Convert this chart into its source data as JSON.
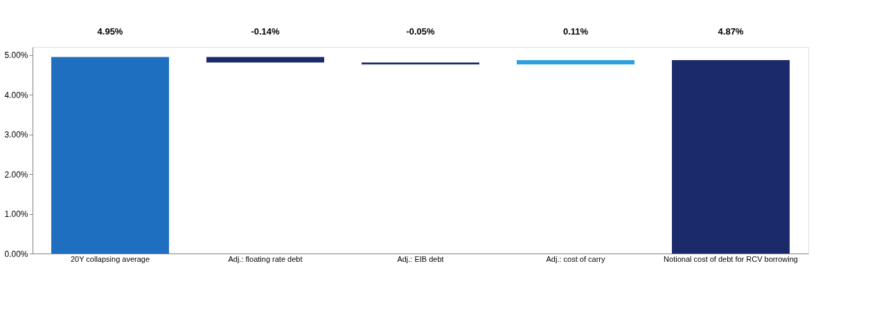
{
  "chart_data": {
    "type": "bar",
    "categories": [
      "20Y collapsing average",
      "Adj.: floating rate debt",
      "Adj.: EIB debt",
      "Adj.: cost of carry",
      "Notional cost of debt for RCV borrowing"
    ],
    "values": [
      4.95,
      -0.14,
      -0.05,
      0.11,
      4.87
    ],
    "base": [
      0,
      4.95,
      4.81,
      4.76,
      0
    ],
    "colors": [
      "#1f6fc0",
      "#1b2a6b",
      "#1b2a6b",
      "#2fa0dc",
      "#1b2a6b"
    ],
    "value_labels": [
      "4.95%",
      "-0.14%",
      "-0.05%",
      "0.11%",
      "4.87%"
    ],
    "ylim": [
      0,
      5.2
    ],
    "yticks": [
      {
        "value": 0,
        "label": "0.00%"
      },
      {
        "value": 1,
        "label": "1.00%"
      },
      {
        "value": 2,
        "label": "2.00%"
      },
      {
        "value": 3,
        "label": "3.00%"
      },
      {
        "value": 4,
        "label": "4.00%"
      },
      {
        "value": 5,
        "label": "5.00%"
      }
    ],
    "grid": false
  }
}
